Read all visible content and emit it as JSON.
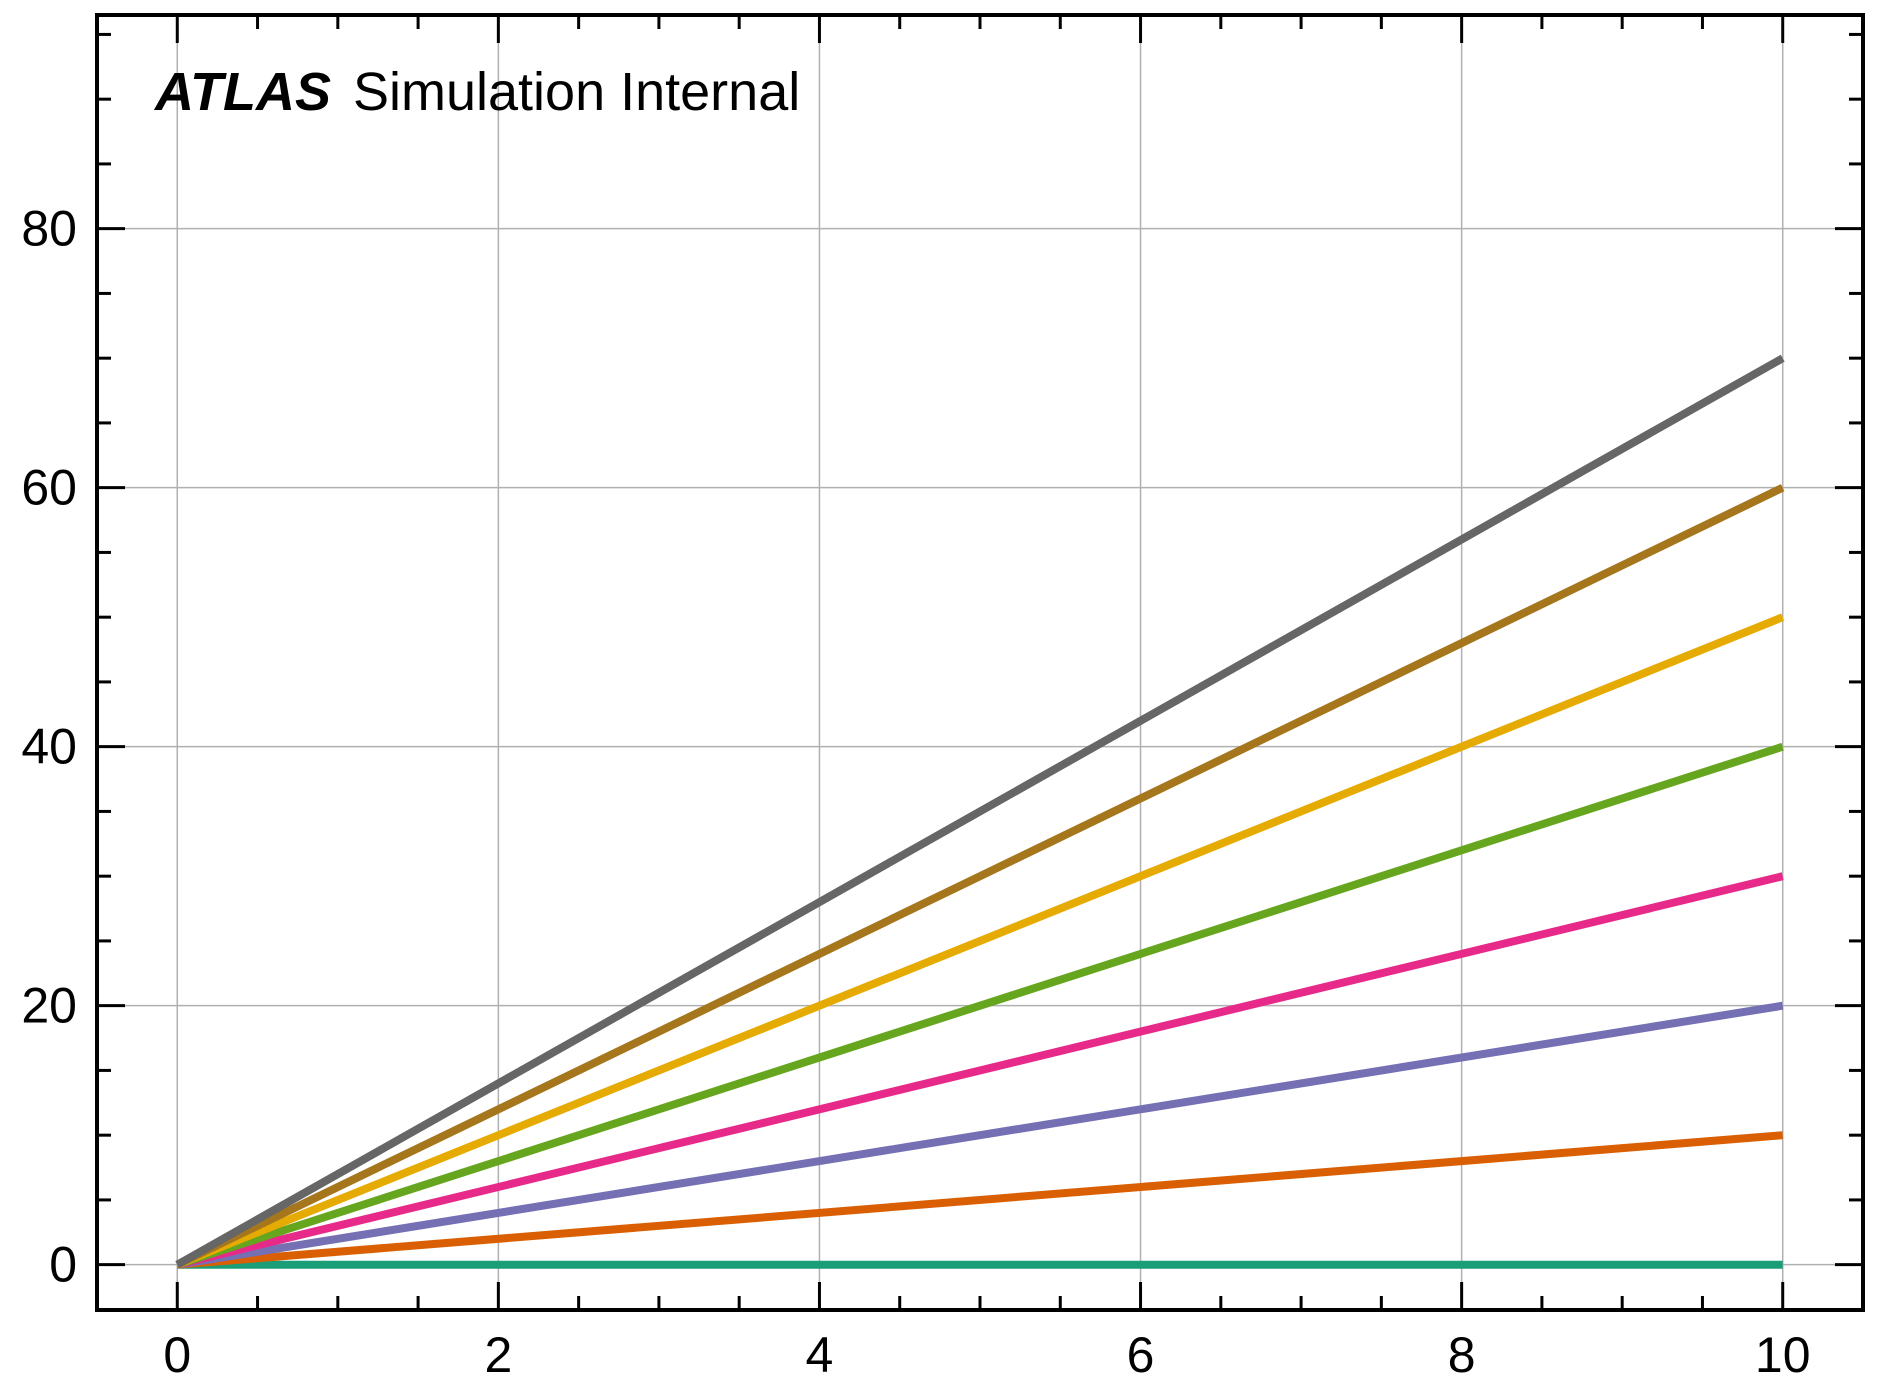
{
  "chart_data": {
    "type": "line",
    "title": "",
    "xlabel": "",
    "ylabel": "",
    "xlim": [
      -0.5,
      10.5
    ],
    "ylim": [
      -3.5,
      96.5
    ],
    "x_ticks_major": [
      0,
      2,
      4,
      6,
      8,
      10
    ],
    "x_tick_labels": [
      "0",
      "2",
      "4",
      "6",
      "8",
      "10"
    ],
    "y_ticks_major": [
      0,
      20,
      40,
      60,
      80
    ],
    "y_tick_labels": [
      "0",
      "20",
      "40",
      "60",
      "80"
    ],
    "x_ticks_minor_step": 0.5,
    "y_ticks_minor_step": 5,
    "grid": true,
    "annotation": {
      "bold": "ATLAS",
      "rest": "Simulation Internal"
    },
    "x": [
      0,
      10
    ],
    "series": [
      {
        "values": [
          0,
          0
        ],
        "color": "#1b9e77"
      },
      {
        "values": [
          0,
          10
        ],
        "color": "#d95f02"
      },
      {
        "values": [
          0,
          20
        ],
        "color": "#7570b3"
      },
      {
        "values": [
          0,
          30
        ],
        "color": "#e7298a"
      },
      {
        "values": [
          0,
          40
        ],
        "color": "#66a61e"
      },
      {
        "values": [
          0,
          50
        ],
        "color": "#e6ab02"
      },
      {
        "values": [
          0,
          60
        ],
        "color": "#a6761d"
      },
      {
        "values": [
          0,
          70
        ],
        "color": "#666666"
      }
    ]
  }
}
